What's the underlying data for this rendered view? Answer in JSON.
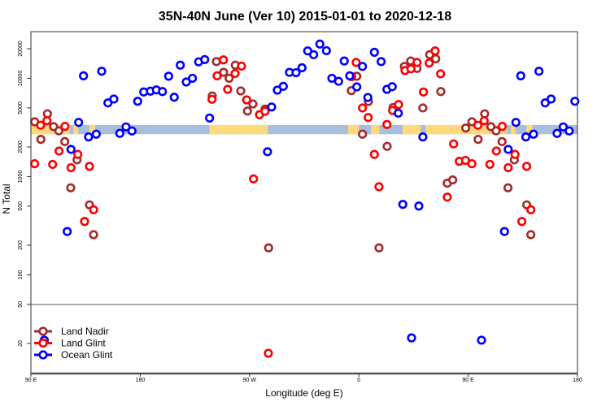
{
  "chart_data": {
    "type": "scatter",
    "title": "35N-40N June (Ver 10)   2015-01-01 to 2020-12-18",
    "xlabel": "Longitude (deg E)",
    "ylabel": "N Total",
    "x_axis": {
      "range_unwrapped_deg": [
        90,
        540
      ],
      "ticks": [
        90,
        180,
        270,
        360,
        450,
        540
      ],
      "tick_labels": [
        "90 E",
        "180",
        "90 W",
        "0",
        "90 E",
        "180"
      ]
    },
    "y_axis": {
      "scale": "log",
      "range": [
        10,
        29000
      ],
      "ticks": [
        20000,
        10000,
        5000,
        2000,
        1000,
        500,
        200,
        100,
        50,
        20
      ],
      "tick_labels": [
        "20000",
        "10000",
        "5000",
        "2000",
        "1000",
        "500",
        "200",
        "100",
        "50",
        "20"
      ],
      "break_at": 50
    },
    "legend": {
      "placement": "bottom-left",
      "entries": [
        "Land Nadir",
        "Land Glint",
        "Ocean Glint"
      ]
    },
    "surface_band": {
      "y_range": [
        2700,
        3350
      ],
      "land_color": "#ffd97a",
      "ocean_color": "#a7bedc",
      "land_segments_lon": [
        [
          90,
          98
        ],
        [
          125,
          129
        ],
        [
          138,
          143
        ],
        [
          -123,
          -75
        ],
        [
          -9,
          0
        ],
        [
          10,
          17
        ],
        [
          36,
          51
        ],
        [
          55,
          122
        ]
      ]
    },
    "series": [
      {
        "name": "Land Nadir",
        "color": "#a52a2a",
        "points": [
          [
            93.1,
            3610
          ],
          [
            103.6,
            4350
          ],
          [
            98.2,
            2390
          ],
          [
            108.7,
            3220
          ],
          [
            113,
            2920
          ],
          [
            117.9,
            2270
          ],
          [
            128,
            1480
          ],
          [
            122.8,
            768
          ],
          [
            138.2,
            515
          ],
          [
            141.6,
            256
          ],
          [
            -120.7,
            6600
          ],
          [
            -117.3,
            14800
          ],
          [
            -111.3,
            11500
          ],
          [
            -106.8,
            10000
          ],
          [
            -101.7,
            13600
          ],
          [
            -97.2,
            7430
          ],
          [
            -87.2,
            5480
          ],
          [
            -91.7,
            4640
          ],
          [
            -77.2,
            4860
          ],
          [
            -74.3,
            188
          ],
          [
            -1.7,
            10500
          ],
          [
            -6.2,
            7490
          ],
          [
            7.9,
            5810
          ],
          [
            3,
            2700
          ],
          [
            23.3,
            2030
          ],
          [
            16.6,
            188
          ],
          [
            28.2,
            5040
          ],
          [
            37.5,
            13200
          ],
          [
            58.3,
            17400
          ],
          [
            63.3,
            15800
          ],
          [
            42.7,
            15000
          ],
          [
            47.9,
            12600
          ],
          [
            67.5,
            7330
          ],
          [
            52.7,
            4990
          ],
          [
            72.8,
            856
          ],
          [
            77.3,
            924
          ],
          [
            88,
            3120
          ]
        ]
      },
      {
        "name": "Land Glint",
        "color": "#ff0000",
        "points": [
          [
            93.1,
            1350
          ],
          [
            98,
            3330
          ],
          [
            103.2,
            3700
          ],
          [
            118.1,
            3240
          ],
          [
            113.2,
            1820
          ],
          [
            107.9,
            1330
          ],
          [
            123,
            1230
          ],
          [
            128.6,
            1680
          ],
          [
            138.2,
            1270
          ],
          [
            141.6,
            459
          ],
          [
            134.2,
            349
          ],
          [
            -120.9,
            6110
          ],
          [
            -116.7,
            10600
          ],
          [
            -111.5,
            15400
          ],
          [
            -108,
            7720
          ],
          [
            -101.9,
            11200
          ],
          [
            -96.6,
            13300
          ],
          [
            -92.4,
            6030
          ],
          [
            -81.8,
            4260
          ],
          [
            -77.2,
            4620
          ],
          [
            -86.7,
            946
          ],
          [
            -74.5,
            15.9
          ],
          [
            -2.2,
            14500
          ],
          [
            -6,
            10400
          ],
          [
            3,
            4990
          ],
          [
            7.7,
            3990
          ],
          [
            23.1,
            3390
          ],
          [
            12.8,
            1680
          ],
          [
            16.6,
            787
          ],
          [
            32.7,
            5410
          ],
          [
            27.8,
            4710
          ],
          [
            62.8,
            19000
          ],
          [
            57.9,
            14300
          ],
          [
            47.9,
            14500
          ],
          [
            38,
            12000
          ],
          [
            42.9,
            12500
          ],
          [
            67.3,
            11100
          ],
          [
            53.2,
            7260
          ],
          [
            78,
            2150
          ],
          [
            82.7,
            1430
          ],
          [
            87.8,
            1460
          ],
          [
            72.8,
            618
          ]
        ]
      },
      {
        "name": "Ocean Glint",
        "color": "#0000ff",
        "points": [
          [
            133.3,
            10600
          ],
          [
            148.3,
            11800
          ],
          [
            129.3,
            3560
          ],
          [
            123,
            1890
          ],
          [
            137.5,
            2530
          ],
          [
            143.8,
            2700
          ],
          [
            119.9,
            276
          ],
          [
            153.4,
            5620
          ],
          [
            158.3,
            6150
          ],
          [
            163.2,
            2750
          ],
          [
            168.3,
            3200
          ],
          [
            173.2,
            2910
          ],
          [
            177.9,
            5840
          ],
          [
            -177.1,
            7260
          ],
          [
            -171.6,
            7400
          ],
          [
            -166.7,
            7620
          ],
          [
            -161.7,
            7330
          ],
          [
            -156.6,
            10500
          ],
          [
            -152,
            6420
          ],
          [
            -147,
            13600
          ],
          [
            -142.1,
            9160
          ],
          [
            -137,
            10000
          ],
          [
            -131.9,
            14700
          ],
          [
            -126.9,
            15500
          ],
          [
            -122.9,
            3940
          ],
          [
            -71.8,
            5100
          ],
          [
            -67.1,
            7580
          ],
          [
            -62.2,
            8280
          ],
          [
            -57.1,
            11500
          ],
          [
            -51.7,
            11400
          ],
          [
            -46.8,
            12800
          ],
          [
            -42.1,
            19000
          ],
          [
            -37.2,
            17400
          ],
          [
            -32.1,
            22300
          ],
          [
            -26.7,
            19100
          ],
          [
            -75.2,
            1790
          ],
          [
            -22.2,
            10000
          ],
          [
            -16.7,
            9330
          ],
          [
            -12,
            15000
          ],
          [
            -7.5,
            10600
          ],
          [
            -1.7,
            8180
          ],
          [
            3,
            13200
          ],
          [
            7.4,
            6380
          ],
          [
            12.8,
            18400
          ],
          [
            18.4,
            14800
          ],
          [
            23.1,
            7720
          ],
          [
            27.5,
            8220
          ],
          [
            32.5,
            4420
          ],
          [
            36.2,
            521
          ],
          [
            52.7,
            2530
          ],
          [
            49.4,
            501
          ],
          [
            43.4,
            22.8
          ],
          [
            101,
            21.6
          ]
        ]
      }
    ]
  }
}
